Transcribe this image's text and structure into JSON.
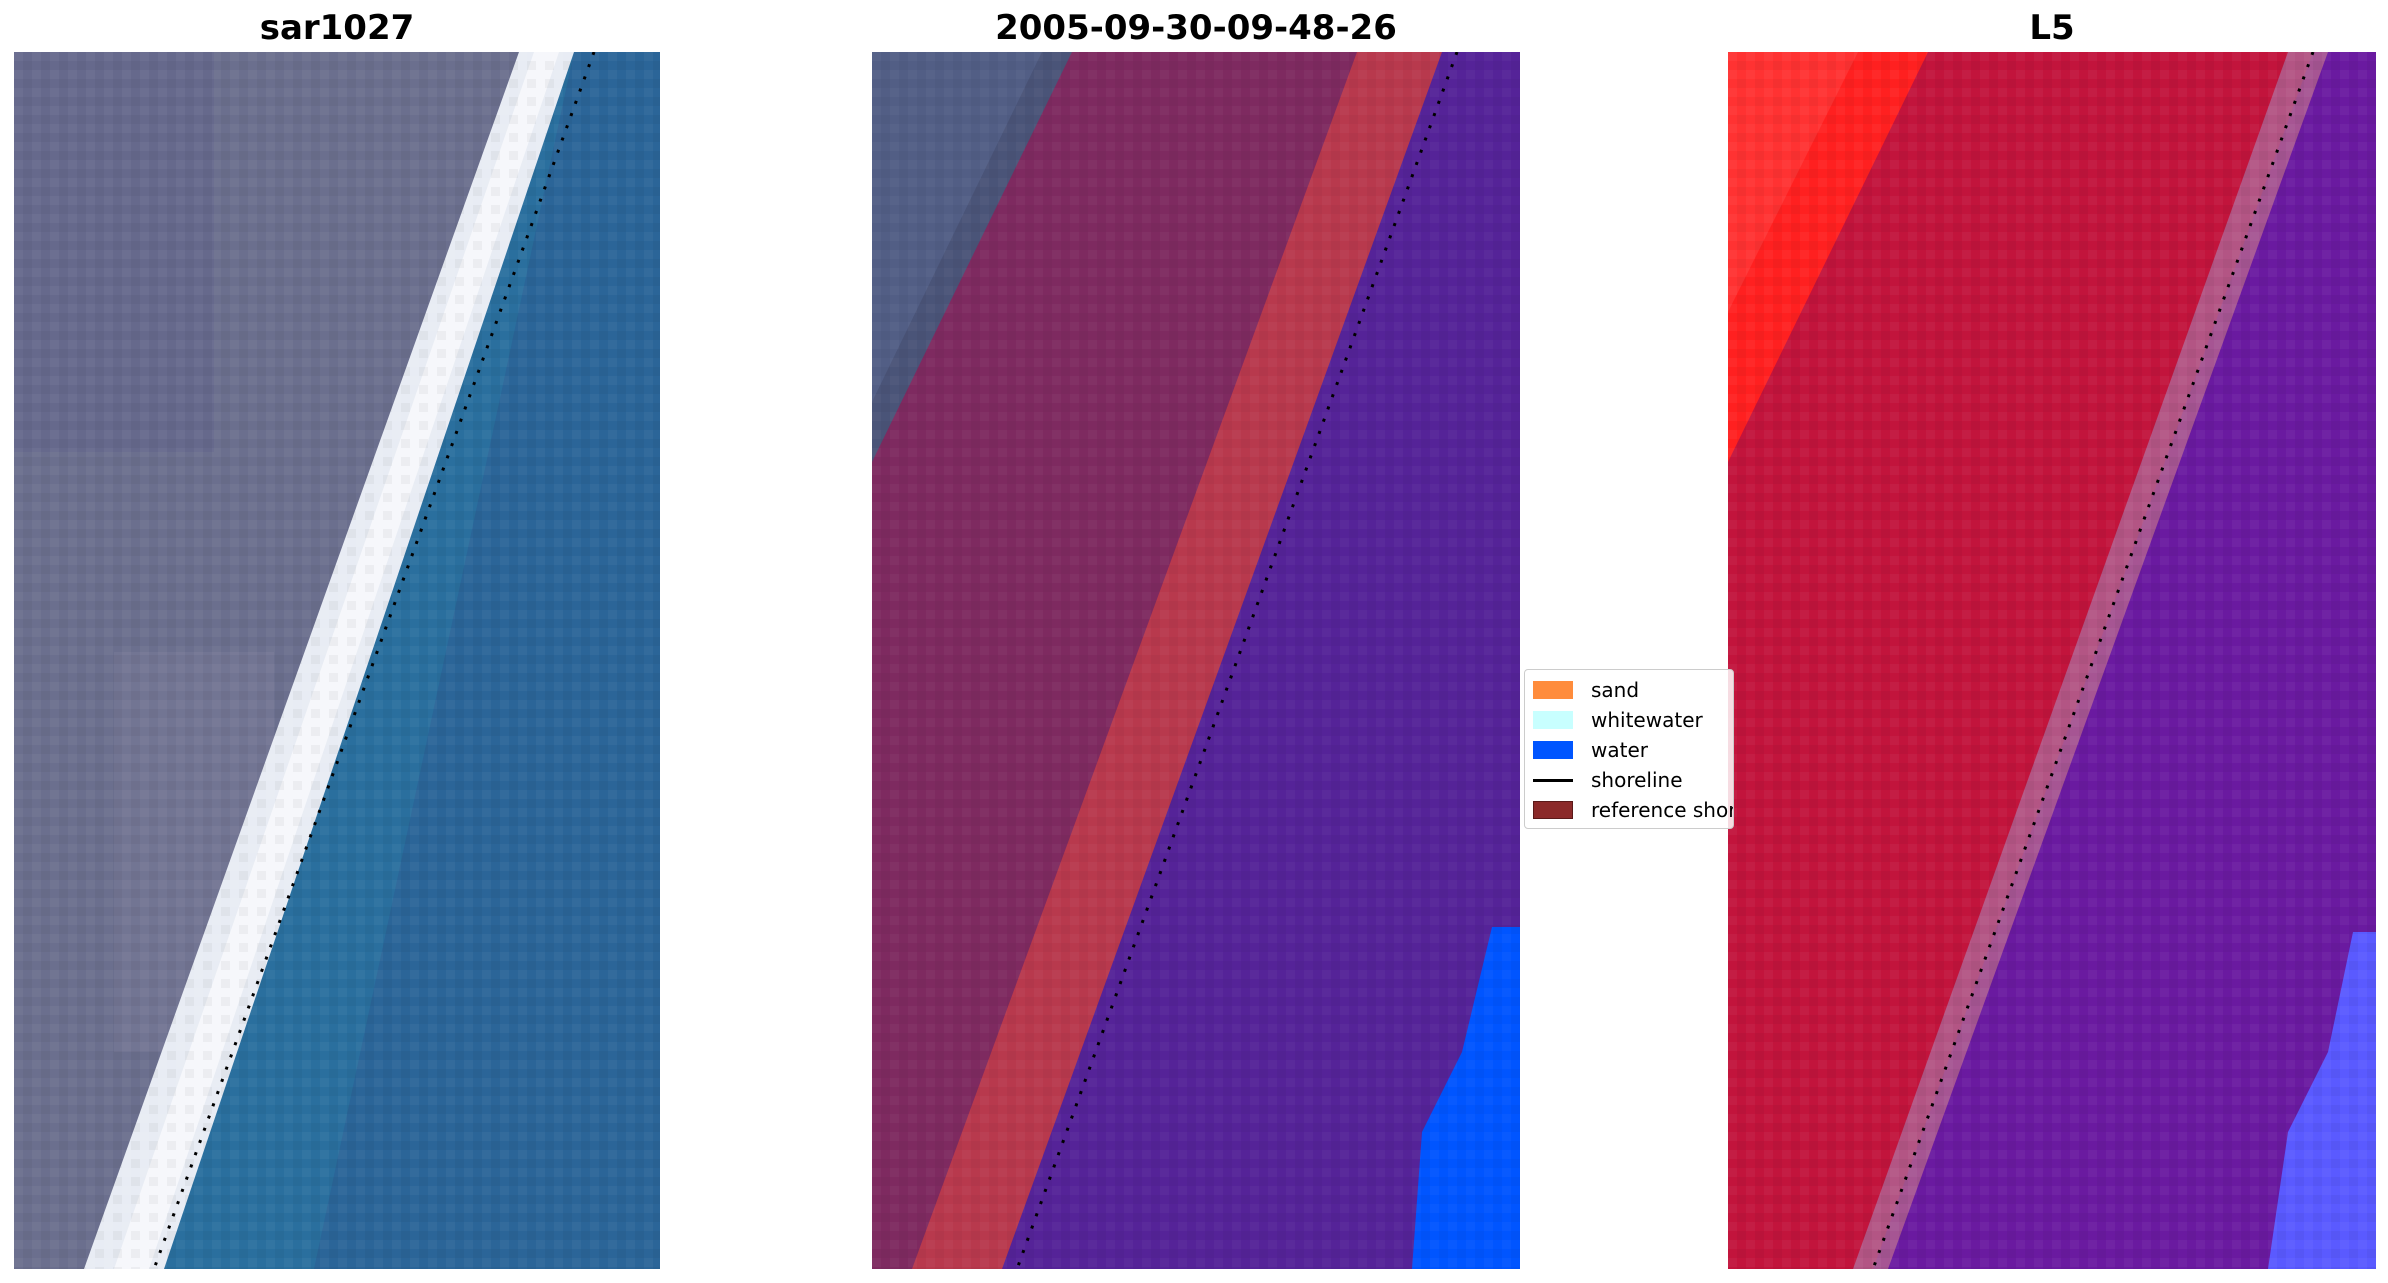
{
  "panels": [
    {
      "title": "sar1027"
    },
    {
      "title": "2005-09-30-09-48-26"
    },
    {
      "title": "L5"
    }
  ],
  "legend": {
    "items": [
      {
        "label": "sand",
        "color": "#ff8c3c"
      },
      {
        "label": "whitewater",
        "color": "#c8ffff"
      },
      {
        "label": "water",
        "color": "#0055ff"
      },
      {
        "label": "shoreline",
        "color": "#000000",
        "kind": "line"
      },
      {
        "label": "reference shoreline",
        "color": "#8b2a2a"
      }
    ]
  },
  "colors": {
    "land_rgb": "#6b6f8e",
    "beach_white": "#e8ecf4",
    "sea_rgb": "#2a6f9e",
    "land_class": "#7e2a60",
    "reference_band": "#b8394d",
    "water_class": "#552398",
    "water_blue": "#0055ff",
    "index_red": "#c2143c",
    "index_purple": "#6a1aa0",
    "index_bright_red": "#ff2020",
    "index_blue": "#5a5aff"
  }
}
